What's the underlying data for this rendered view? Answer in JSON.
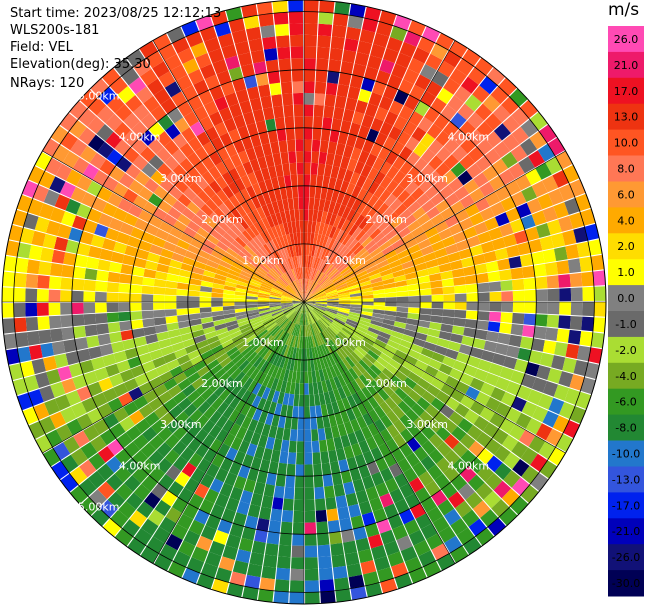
{
  "info": {
    "start_time": "Start time: 2023/08/25 12:12:13",
    "device": "WLS200s-181",
    "field": "Field: VEL",
    "elevation": "Elevation(deg): 35.30",
    "nrays": "NRays: 120"
  },
  "colorbar": {
    "unit": "m/s",
    "ticks": [
      "26.0",
      "21.0",
      "17.0",
      "13.0",
      "10.0",
      "8.0",
      "6.0",
      "4.0",
      "2.0",
      "1.0",
      "0.0",
      "-1.0",
      "-2.0",
      "-4.0",
      "-6.0",
      "-8.0",
      "-10.0",
      "-13.0",
      "-17.0",
      "-21.0",
      "-26.0",
      "-30.0"
    ],
    "bins": [
      {
        "color": "#ff4ab4"
      },
      {
        "color": "#ee1a6a"
      },
      {
        "color": "#ee1122"
      },
      {
        "color": "#ee3311"
      },
      {
        "color": "#ff5522"
      },
      {
        "color": "#ff7755"
      },
      {
        "color": "#ff9933"
      },
      {
        "color": "#ffaa00"
      },
      {
        "color": "#ffdd00"
      },
      {
        "color": "#ffff00"
      },
      {
        "color": "#808080"
      },
      {
        "color": "#6a6a6a"
      },
      {
        "color": "#aadd33"
      },
      {
        "color": "#77aa22"
      },
      {
        "color": "#339922"
      },
      {
        "color": "#228833"
      },
      {
        "color": "#2277cc"
      },
      {
        "color": "#3355dd"
      },
      {
        "color": "#0022ee"
      },
      {
        "color": "#0000bb"
      },
      {
        "color": "#111177"
      },
      {
        "color": "#000055"
      }
    ]
  },
  "chart_data": {
    "type": "heatmap",
    "field": "VEL",
    "nrays": 120,
    "range_rings_km": [
      1.0,
      2.0,
      3.0,
      4.0,
      5.0
    ],
    "ring_labels": [
      "1.00km",
      "2.00km",
      "3.00km",
      "4.00km",
      "5.00km"
    ],
    "max_range_km": 5.2,
    "gates": 26,
    "radial_velocity_by_direction": [
      {
        "direction": "N",
        "value": 13.0
      },
      {
        "direction": "NE",
        "value": 8.0
      },
      {
        "direction": "E",
        "value": 0.0
      },
      {
        "direction": "SE",
        "value": -6.0
      },
      {
        "direction": "S",
        "value": -10.0
      },
      {
        "direction": "SW",
        "value": -8.0
      },
      {
        "direction": "W",
        "value": 0.0
      },
      {
        "direction": "NW",
        "value": 8.0
      }
    ],
    "colorbar_range": [
      -30.0,
      30.0
    ]
  }
}
